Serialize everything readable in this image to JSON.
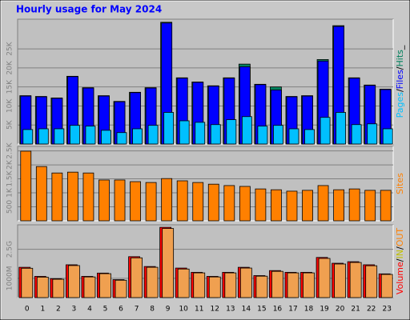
{
  "title": "Hourly usage for May 2024",
  "chart_data": [
    {
      "type": "bar",
      "legend_separator": "/",
      "legend_suffix": "_",
      "categories": [
        "0",
        "1",
        "2",
        "3",
        "4",
        "5",
        "6",
        "7",
        "8",
        "9",
        "10",
        "11",
        "12",
        "13",
        "14",
        "15",
        "16",
        "17",
        "18",
        "19",
        "20",
        "21",
        "22",
        "23"
      ],
      "series": [
        {
          "name": "Hits",
          "color": "#00805c",
          "values": [
            12700,
            12500,
            12100,
            17800,
            14800,
            12700,
            11200,
            13600,
            14800,
            32000,
            17400,
            16300,
            15300,
            17400,
            21000,
            15700,
            15000,
            12500,
            12700,
            22200,
            31100,
            17400,
            15500,
            14400
          ]
        },
        {
          "name": "Files",
          "color": "#0000ff",
          "values": [
            12600,
            12400,
            12000,
            17700,
            14700,
            12600,
            11100,
            13500,
            14700,
            31800,
            17300,
            16200,
            15200,
            17300,
            20300,
            15600,
            14200,
            12400,
            12600,
            21800,
            30900,
            17300,
            15400,
            14300
          ]
        },
        {
          "name": "Pages",
          "color": "#00c0ff",
          "values": [
            3800,
            4000,
            4000,
            4900,
            4700,
            3600,
            3000,
            4000,
            4900,
            8300,
            6100,
            5700,
            5100,
            6400,
            7200,
            4700,
            4900,
            4000,
            3800,
            7000,
            8300,
            5100,
            5300,
            4000
          ]
        }
      ],
      "ylim": [
        0,
        32800
      ],
      "yticks": [
        {
          "value": 5000,
          "label": "5K"
        },
        {
          "value": 10000,
          "label": "10K"
        },
        {
          "value": 15000,
          "label": "15K"
        },
        {
          "value": 20000,
          "label": "20K"
        },
        {
          "value": 25000,
          "label": "25K"
        }
      ],
      "grid": true
    },
    {
      "type": "bar",
      "series": [
        {
          "name": "Sites",
          "color": "#ff8000",
          "values": [
            2490,
            1940,
            1710,
            1740,
            1710,
            1460,
            1460,
            1400,
            1370,
            1510,
            1430,
            1370,
            1310,
            1260,
            1230,
            1140,
            1110,
            1060,
            1090,
            1260,
            1110,
            1140,
            1090,
            1090
          ]
        }
      ],
      "ylim": [
        0,
        2660
      ],
      "yticks": [
        500,
        {
          "value": 1000,
          "label": "1K"
        },
        {
          "value": 1500,
          "label": "1.5K"
        },
        {
          "value": 2000,
          "label": "2K"
        },
        {
          "value": 2500,
          "label": "2.5K"
        }
      ],
      "grid": true
    },
    {
      "type": "bar",
      "legend_separator": "/",
      "legend_labels": [
        {
          "text": "Volume",
          "color": "#ff0000"
        },
        {
          "text": "IN",
          "color": "#c0c000"
        },
        {
          "text": "OUT",
          "color": "#ff8000"
        }
      ],
      "series": [
        {
          "name": "Volume",
          "color": "#ff0000",
          "values": [
            1570,
            1100,
            980,
            1700,
            1100,
            1270,
            930,
            2120,
            1610,
            3640,
            1530,
            1310,
            1100,
            1310,
            1570,
            1140,
            1400,
            1310,
            1310,
            2080,
            1780,
            1860,
            1700,
            1230
          ]
        },
        {
          "name": "OUT",
          "color": "#f0a050",
          "values": [
            1520,
            1060,
            950,
            1660,
            1070,
            1240,
            900,
            2060,
            1570,
            3580,
            1480,
            1280,
            1070,
            1280,
            1530,
            1110,
            1360,
            1280,
            1280,
            2030,
            1740,
            1820,
            1650,
            1200
          ]
        }
      ],
      "ylim": [
        0,
        3770
      ],
      "yticks": [
        {
          "value": 1000,
          "label": "1000M"
        },
        {
          "value": 2500,
          "label": "2.5G"
        }
      ],
      "grid": true
    }
  ]
}
